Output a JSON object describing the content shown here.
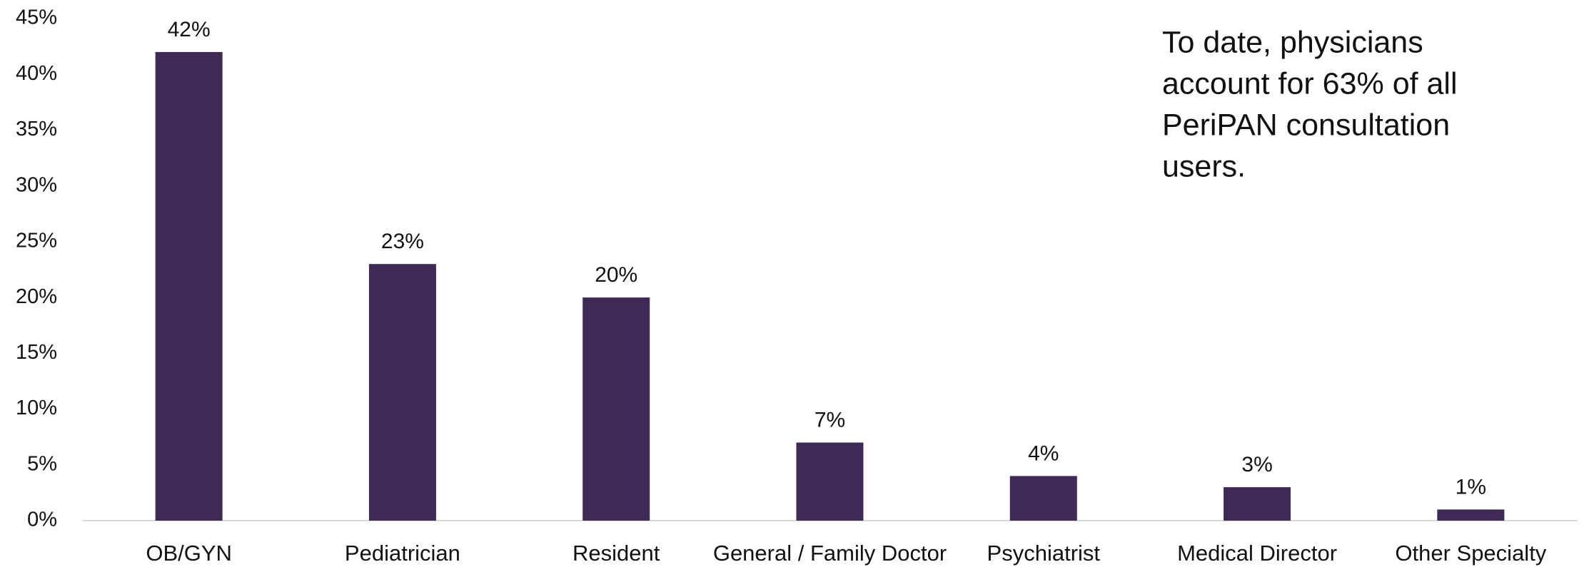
{
  "chart_data": {
    "type": "bar",
    "categories": [
      "OB/GYN",
      "Pediatrician",
      "Resident",
      "General / Family Doctor",
      "Psychiatrist",
      "Medical Director",
      "Other Specialty"
    ],
    "values": [
      42,
      23,
      20,
      7,
      4,
      3,
      1
    ],
    "value_labels": [
      "42%",
      "23%",
      "20%",
      "7%",
      "4%",
      "3%",
      "1%"
    ],
    "color": "#3f2a56",
    "ylim": [
      0,
      45
    ],
    "yticks": [
      {
        "value": 0,
        "label": "0%"
      },
      {
        "value": 5,
        "label": "5%"
      },
      {
        "value": 10,
        "label": "10%"
      },
      {
        "value": 15,
        "label": "15%"
      },
      {
        "value": 20,
        "label": "20%"
      },
      {
        "value": 25,
        "label": "25%"
      },
      {
        "value": 30,
        "label": "30%"
      },
      {
        "value": 35,
        "label": "35%"
      },
      {
        "value": 40,
        "label": "40%"
      },
      {
        "value": 45,
        "label": "45%"
      }
    ],
    "grid": false,
    "annotation": [
      "To date, physicians",
      "account for 63% of all",
      "PeriPAN consultation",
      "users."
    ]
  }
}
